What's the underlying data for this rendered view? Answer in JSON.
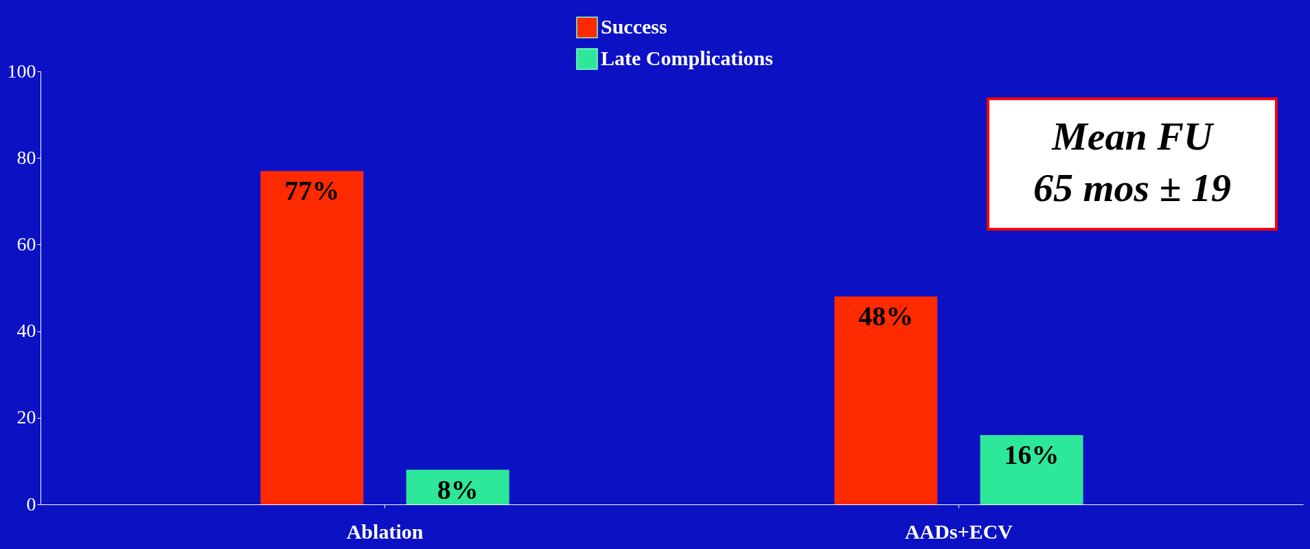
{
  "chart_data": {
    "type": "bar",
    "categories": [
      "Ablation",
      "AADs+ECV"
    ],
    "series": [
      {
        "name": "Success",
        "color": "#ff2a00",
        "values": [
          77,
          48
        ],
        "value_labels": [
          "77%",
          "48%"
        ]
      },
      {
        "name": "Late Complications",
        "color": "#2ee89a",
        "values": [
          8,
          16
        ],
        "value_labels": [
          "8%",
          "16%"
        ]
      }
    ],
    "ylim": [
      0,
      100
    ],
    "yticks": [
      0,
      20,
      40,
      60,
      80,
      100
    ],
    "grid": false,
    "legend": "top",
    "annotations": [
      "Mean FU",
      "65 mos ± 19"
    ]
  }
}
